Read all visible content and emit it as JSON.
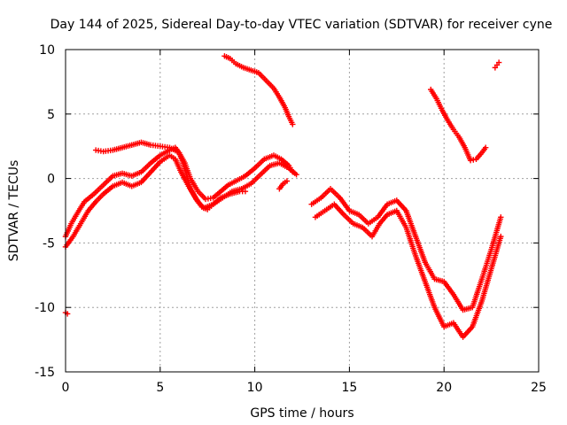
{
  "chart_data": {
    "type": "scatter",
    "title": "Day 144 of 2025, Sidereal Day-to-day VTEC variation (SDTVAR) for receiver cyne",
    "xlabel": "GPS time / hours",
    "ylabel": "SDTVAR / TECUs",
    "xlim": [
      0,
      25
    ],
    "ylim": [
      -15,
      10
    ],
    "x_ticks": [
      0,
      5,
      10,
      15,
      20,
      25
    ],
    "y_ticks": [
      -15,
      -10,
      -5,
      0,
      5,
      10
    ],
    "x_tick_labels": [
      "0",
      "5",
      "10",
      "15",
      "20",
      "25"
    ],
    "y_tick_labels": [
      "-15",
      "-10",
      "-5",
      "0",
      "5",
      "10"
    ],
    "grid": true,
    "marker": "+",
    "color": "#ff0000",
    "series": [
      {
        "name": "track-a-upper",
        "points": [
          [
            0.0,
            -4.5
          ],
          [
            0.3,
            -3.5
          ],
          [
            0.7,
            -2.5
          ],
          [
            1.0,
            -1.8
          ],
          [
            1.5,
            -1.2
          ],
          [
            2.0,
            -0.5
          ],
          [
            2.5,
            0.2
          ],
          [
            3.0,
            0.4
          ],
          [
            3.5,
            0.2
          ],
          [
            4.0,
            0.5
          ],
          [
            4.5,
            1.2
          ],
          [
            5.0,
            1.8
          ],
          [
            5.5,
            2.2
          ],
          [
            5.8,
            2.4
          ],
          [
            6.0,
            2.0
          ],
          [
            6.3,
            1.2
          ],
          [
            6.6,
            0.0
          ],
          [
            7.0,
            -1.0
          ],
          [
            7.4,
            -1.6
          ],
          [
            7.8,
            -1.5
          ],
          [
            8.2,
            -1.0
          ],
          [
            8.6,
            -0.5
          ],
          [
            9.0,
            -0.2
          ],
          [
            9.5,
            0.2
          ],
          [
            10.0,
            0.8
          ],
          [
            10.5,
            1.5
          ],
          [
            11.0,
            1.8
          ],
          [
            11.4,
            1.5
          ],
          [
            11.8,
            1.0
          ],
          [
            12.0,
            0.5
          ]
        ]
      },
      {
        "name": "track-a-lower",
        "points": [
          [
            0.0,
            -5.3
          ],
          [
            0.4,
            -4.5
          ],
          [
            0.8,
            -3.5
          ],
          [
            1.2,
            -2.5
          ],
          [
            1.6,
            -1.8
          ],
          [
            2.0,
            -1.2
          ],
          [
            2.5,
            -0.6
          ],
          [
            3.0,
            -0.3
          ],
          [
            3.5,
            -0.6
          ],
          [
            4.0,
            -0.3
          ],
          [
            4.5,
            0.5
          ],
          [
            5.0,
            1.3
          ],
          [
            5.5,
            1.8
          ],
          [
            5.8,
            1.5
          ],
          [
            6.1,
            0.5
          ],
          [
            6.5,
            -0.6
          ],
          [
            7.0,
            -1.8
          ],
          [
            7.3,
            -2.3
          ],
          [
            7.8,
            -2.0
          ],
          [
            8.3,
            -1.5
          ],
          [
            8.8,
            -1.0
          ],
          [
            9.3,
            -0.8
          ],
          [
            9.8,
            -0.4
          ],
          [
            10.3,
            0.3
          ],
          [
            10.8,
            1.0
          ],
          [
            11.3,
            1.2
          ],
          [
            11.8,
            0.8
          ],
          [
            12.2,
            0.3
          ]
        ]
      },
      {
        "name": "track-b",
        "points": [
          [
            1.6,
            2.2
          ],
          [
            2.0,
            2.1
          ],
          [
            2.5,
            2.2
          ],
          [
            3.0,
            2.4
          ],
          [
            3.5,
            2.6
          ],
          [
            4.0,
            2.8
          ],
          [
            4.5,
            2.6
          ],
          [
            5.0,
            2.5
          ],
          [
            5.5,
            2.4
          ],
          [
            6.0,
            2.0
          ],
          [
            6.2,
            1.2
          ],
          [
            6.4,
            0.3
          ],
          [
            6.6,
            -0.8
          ],
          [
            6.9,
            -1.6
          ],
          [
            7.2,
            -2.2
          ],
          [
            7.5,
            -2.4
          ],
          [
            7.8,
            -2.0
          ],
          [
            8.2,
            -1.5
          ],
          [
            8.7,
            -1.2
          ],
          [
            9.2,
            -1.0
          ],
          [
            9.5,
            -1.0
          ]
        ]
      },
      {
        "name": "track-c-arc",
        "points": [
          [
            8.4,
            9.5
          ],
          [
            8.7,
            9.3
          ],
          [
            9.0,
            8.9
          ],
          [
            9.4,
            8.6
          ],
          [
            9.8,
            8.4
          ],
          [
            10.2,
            8.2
          ],
          [
            10.6,
            7.6
          ],
          [
            11.0,
            7.0
          ],
          [
            11.3,
            6.3
          ],
          [
            11.6,
            5.5
          ],
          [
            11.8,
            4.8
          ],
          [
            12.0,
            4.2
          ]
        ]
      },
      {
        "name": "track-d-upper",
        "points": [
          [
            13.0,
            -2.0
          ],
          [
            13.5,
            -1.5
          ],
          [
            14.0,
            -0.8
          ],
          [
            14.5,
            -1.5
          ],
          [
            15.0,
            -2.5
          ],
          [
            15.5,
            -2.8
          ],
          [
            16.0,
            -3.5
          ],
          [
            16.5,
            -3.0
          ],
          [
            17.0,
            -2.0
          ],
          [
            17.5,
            -1.7
          ],
          [
            18.0,
            -2.5
          ],
          [
            18.5,
            -4.5
          ],
          [
            19.0,
            -6.5
          ],
          [
            19.5,
            -7.8
          ],
          [
            20.0,
            -8.0
          ],
          [
            20.5,
            -9.0
          ],
          [
            21.0,
            -10.2
          ],
          [
            21.5,
            -10.0
          ],
          [
            22.0,
            -7.8
          ],
          [
            22.5,
            -5.5
          ],
          [
            23.0,
            -3.0
          ]
        ]
      },
      {
        "name": "track-d-lower",
        "points": [
          [
            13.2,
            -3.0
          ],
          [
            13.7,
            -2.5
          ],
          [
            14.2,
            -2.0
          ],
          [
            14.7,
            -2.8
          ],
          [
            15.2,
            -3.5
          ],
          [
            15.7,
            -3.8
          ],
          [
            16.2,
            -4.5
          ],
          [
            16.6,
            -3.5
          ],
          [
            17.0,
            -2.8
          ],
          [
            17.5,
            -2.5
          ],
          [
            18.0,
            -3.8
          ],
          [
            18.5,
            -6.0
          ],
          [
            19.0,
            -8.0
          ],
          [
            19.5,
            -10.0
          ],
          [
            20.0,
            -11.5
          ],
          [
            20.5,
            -11.2
          ],
          [
            21.0,
            -12.3
          ],
          [
            21.5,
            -11.5
          ],
          [
            22.0,
            -9.5
          ],
          [
            22.5,
            -7.0
          ],
          [
            23.0,
            -4.5
          ]
        ]
      },
      {
        "name": "track-e",
        "points": [
          [
            19.3,
            6.9
          ],
          [
            19.6,
            6.2
          ],
          [
            19.9,
            5.3
          ],
          [
            20.2,
            4.5
          ],
          [
            20.5,
            3.8
          ],
          [
            20.8,
            3.2
          ],
          [
            21.1,
            2.4
          ],
          [
            21.4,
            1.4
          ],
          [
            21.7,
            1.5
          ],
          [
            22.0,
            2.0
          ],
          [
            22.2,
            2.4
          ]
        ]
      },
      {
        "name": "track-f",
        "points": [
          [
            22.7,
            8.6
          ],
          [
            22.8,
            8.8
          ],
          [
            22.9,
            9.0
          ]
        ]
      },
      {
        "name": "stray",
        "points": [
          [
            0.0,
            -10.4
          ],
          [
            0.1,
            -10.5
          ],
          [
            11.3,
            -0.8
          ],
          [
            11.5,
            -0.4
          ],
          [
            11.7,
            -0.2
          ]
        ]
      }
    ]
  }
}
